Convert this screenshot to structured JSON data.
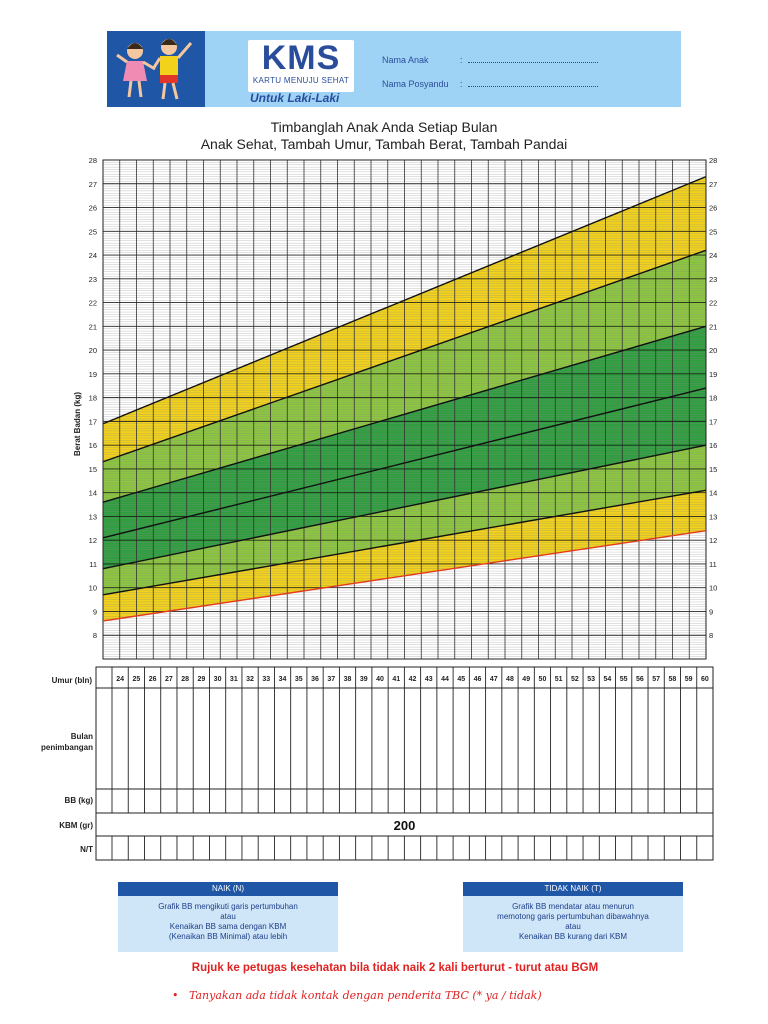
{
  "header": {
    "logo_text": "KMS",
    "logo_subtitle": "KARTU MENUJU SEHAT",
    "gender_label": "Untuk Laki-Laki",
    "fields": [
      {
        "label": "Nama Anak",
        "sep": ":"
      },
      {
        "label": "Nama Posyandu",
        "sep": ":"
      }
    ]
  },
  "title": {
    "line1": "Timbanglah Anak Anda Setiap Bulan",
    "line2": "Anak Sehat, Tambah Umur, Tambah Berat, Tambah Pandai"
  },
  "chart_data": {
    "type": "area",
    "ylabel": "Berat Badan (kg)",
    "xlabel": "Umur (bln)",
    "x": [
      24,
      60
    ],
    "xlim": [
      24,
      60
    ],
    "ylim": [
      7,
      28
    ],
    "y_ticks": [
      8,
      9,
      10,
      11,
      12,
      13,
      14,
      15,
      16,
      17,
      18,
      19,
      20,
      21,
      22,
      23,
      24,
      25,
      26,
      27,
      28
    ],
    "grid": true,
    "curves": [
      {
        "y": [
          8.6,
          12.4
        ],
        "color": "#e23a1e"
      },
      {
        "y": [
          9.7,
          14.1
        ],
        "color": "#111111"
      },
      {
        "y": [
          10.8,
          16.0
        ],
        "color": "#111111"
      },
      {
        "y": [
          12.1,
          18.4
        ],
        "color": "#111111"
      },
      {
        "y": [
          13.6,
          21.0
        ],
        "color": "#111111"
      },
      {
        "y": [
          15.3,
          24.2
        ],
        "color": "#111111"
      },
      {
        "y": [
          16.9,
          27.3
        ],
        "color": "#111111"
      }
    ],
    "bands": [
      {
        "color": "#f2d21b"
      },
      {
        "color": "#8cc63f"
      },
      {
        "color": "#2e9e3e"
      },
      {
        "color": "#2e9e3e"
      },
      {
        "color": "#8cc63f"
      },
      {
        "color": "#f2d21b"
      }
    ]
  },
  "table": {
    "months_label": "Umur (bln)",
    "months": [
      "24",
      "25",
      "26",
      "27",
      "28",
      "29",
      "30",
      "31",
      "32",
      "33",
      "34",
      "35",
      "36",
      "37",
      "38",
      "39",
      "40",
      "41",
      "42",
      "43",
      "44",
      "45",
      "46",
      "47",
      "48",
      "49",
      "50",
      "51",
      "52",
      "53",
      "54",
      "55",
      "56",
      "57",
      "58",
      "59",
      "60"
    ],
    "rows": [
      {
        "label_lines": [
          "Bulan",
          "penimbangan"
        ]
      },
      {
        "label_lines": [
          "BB (kg)"
        ]
      },
      {
        "label_lines": [
          "KBM (gr)"
        ]
      },
      {
        "label_lines": [
          "N/T"
        ]
      }
    ],
    "kbm_value": "200"
  },
  "legend_boxes": {
    "naik": {
      "title": "NAIK (N)",
      "lines": [
        "Grafik BB mengikuti garis pertumbuhan",
        "atau",
        "Kenaikan BB sama dengan KBM",
        "(Kenaikan BB Minimal) atau lebih"
      ]
    },
    "tidak_naik": {
      "title": "TIDAK NAIK (T)",
      "lines": [
        "Grafik BB mendatar atau menurun",
        "memotong garis pertumbuhan dibawahnya",
        "atau",
        "Kenaikan BB kurang dari KBM"
      ]
    }
  },
  "footer": {
    "rujuk": "Rujuk ke petugas kesehatan bila tidak naik 2 kali berturut - turut atau BGM",
    "tanyakan": "Tanyakan ada tidak kontak dengan penderita TBC (* ya / tidak)",
    "bullet": "•"
  },
  "colors": {
    "header_bg": "#9fd3f5",
    "brand_blue": "#2a4d9b",
    "kids_panel": "#1f56a6",
    "alert_red": "#e12222"
  }
}
